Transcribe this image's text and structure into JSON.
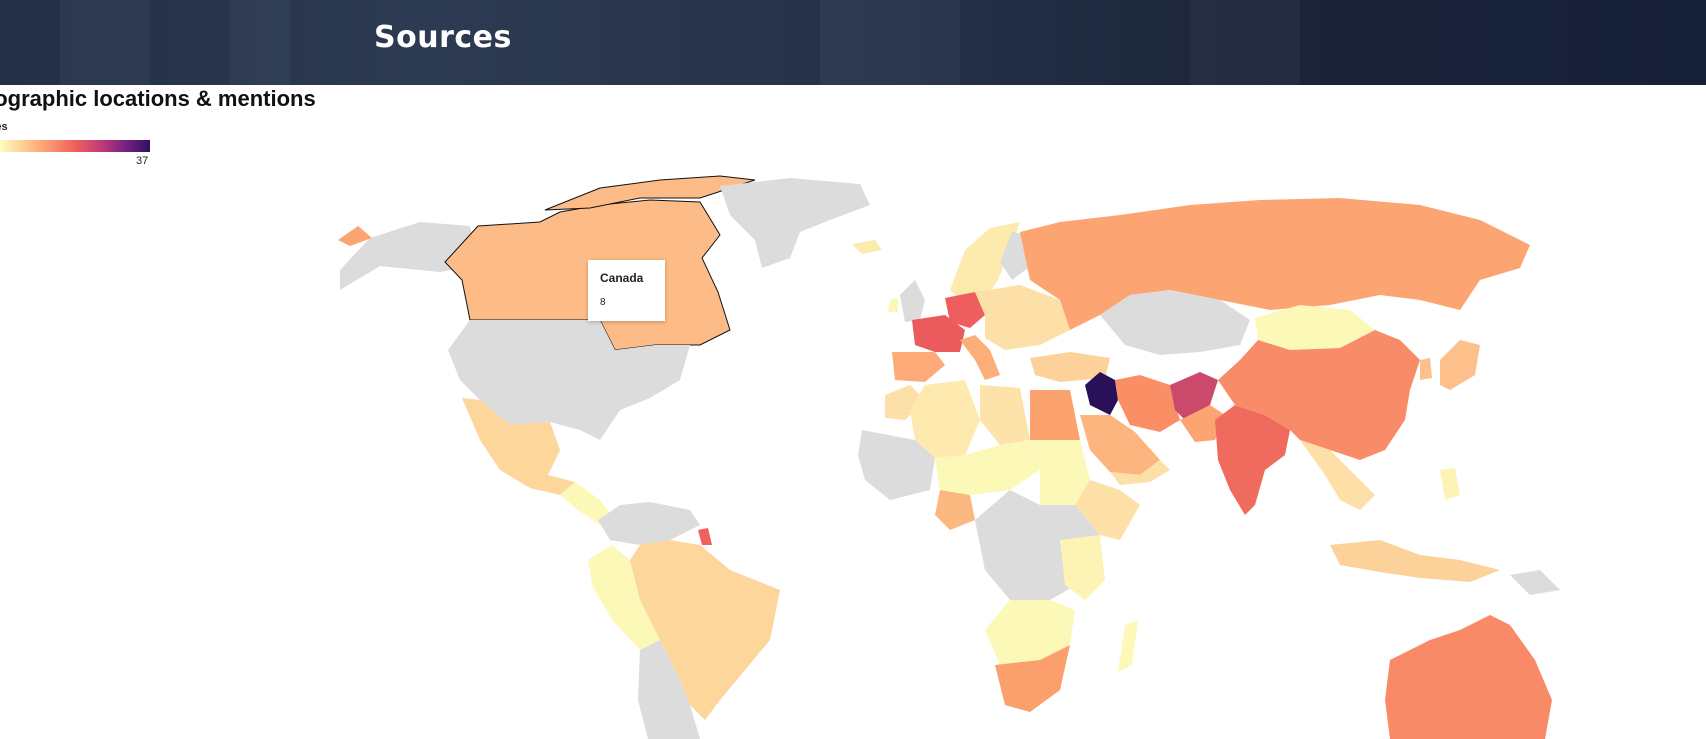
{
  "header": {
    "title": "Sources"
  },
  "map": {
    "title": "eographic locations & mentions",
    "legend": {
      "label": "ries",
      "max": "37",
      "scale_colors": [
        "#fcfdbf",
        "#feb078",
        "#f1605d",
        "#b63679",
        "#721f81",
        "#2c115f"
      ]
    },
    "no_data_color": "#dcdcdc",
    "tooltip": {
      "country": "Canada",
      "value": "8"
    },
    "countries": [
      {
        "name": "Canada",
        "color": "#fdbc87"
      },
      {
        "name": "United States",
        "color": "#dcdcdc"
      },
      {
        "name": "Greenland",
        "color": "#dcdcdc"
      },
      {
        "name": "Alaska",
        "color": "#dcdcdc"
      },
      {
        "name": "Mexico",
        "color": "#fdd69c"
      },
      {
        "name": "Brazil",
        "color": "#fdd69c"
      },
      {
        "name": "Peru",
        "color": "#fcf8b8"
      },
      {
        "name": "French Guiana",
        "color": "#f0605d"
      },
      {
        "name": "Russia",
        "color": "#fca572"
      },
      {
        "name": "China",
        "color": "#f88c68"
      },
      {
        "name": "India",
        "color": "#ef6b5d"
      },
      {
        "name": "Mongolia",
        "color": "#fcf8b8"
      },
      {
        "name": "Kazakhstan",
        "color": "#dcdcdc"
      },
      {
        "name": "Iran",
        "color": "#fa8f66"
      },
      {
        "name": "Iraq",
        "color": "#2a0f59"
      },
      {
        "name": "Afghanistan",
        "color": "#cb4a6c"
      },
      {
        "name": "Saudi Arabia",
        "color": "#fcb57f"
      },
      {
        "name": "Egypt",
        "color": "#fba26f"
      },
      {
        "name": "France",
        "color": "#eb5a5c"
      },
      {
        "name": "Germany",
        "color": "#ee5e5e"
      },
      {
        "name": "Spain",
        "color": "#fcab78"
      },
      {
        "name": "Italy",
        "color": "#fcae79"
      },
      {
        "name": "Algeria",
        "color": "#feeaae"
      },
      {
        "name": "Nigeria",
        "color": "#fcb881"
      },
      {
        "name": "Sudan",
        "color": "#fcf8b8"
      },
      {
        "name": "South Africa",
        "color": "#fba06d"
      },
      {
        "name": "Australia",
        "color": "#f88a67"
      },
      {
        "name": "Indonesia",
        "color": "#fdd29a"
      },
      {
        "name": "Japan",
        "color": "#fdc08a"
      }
    ]
  }
}
